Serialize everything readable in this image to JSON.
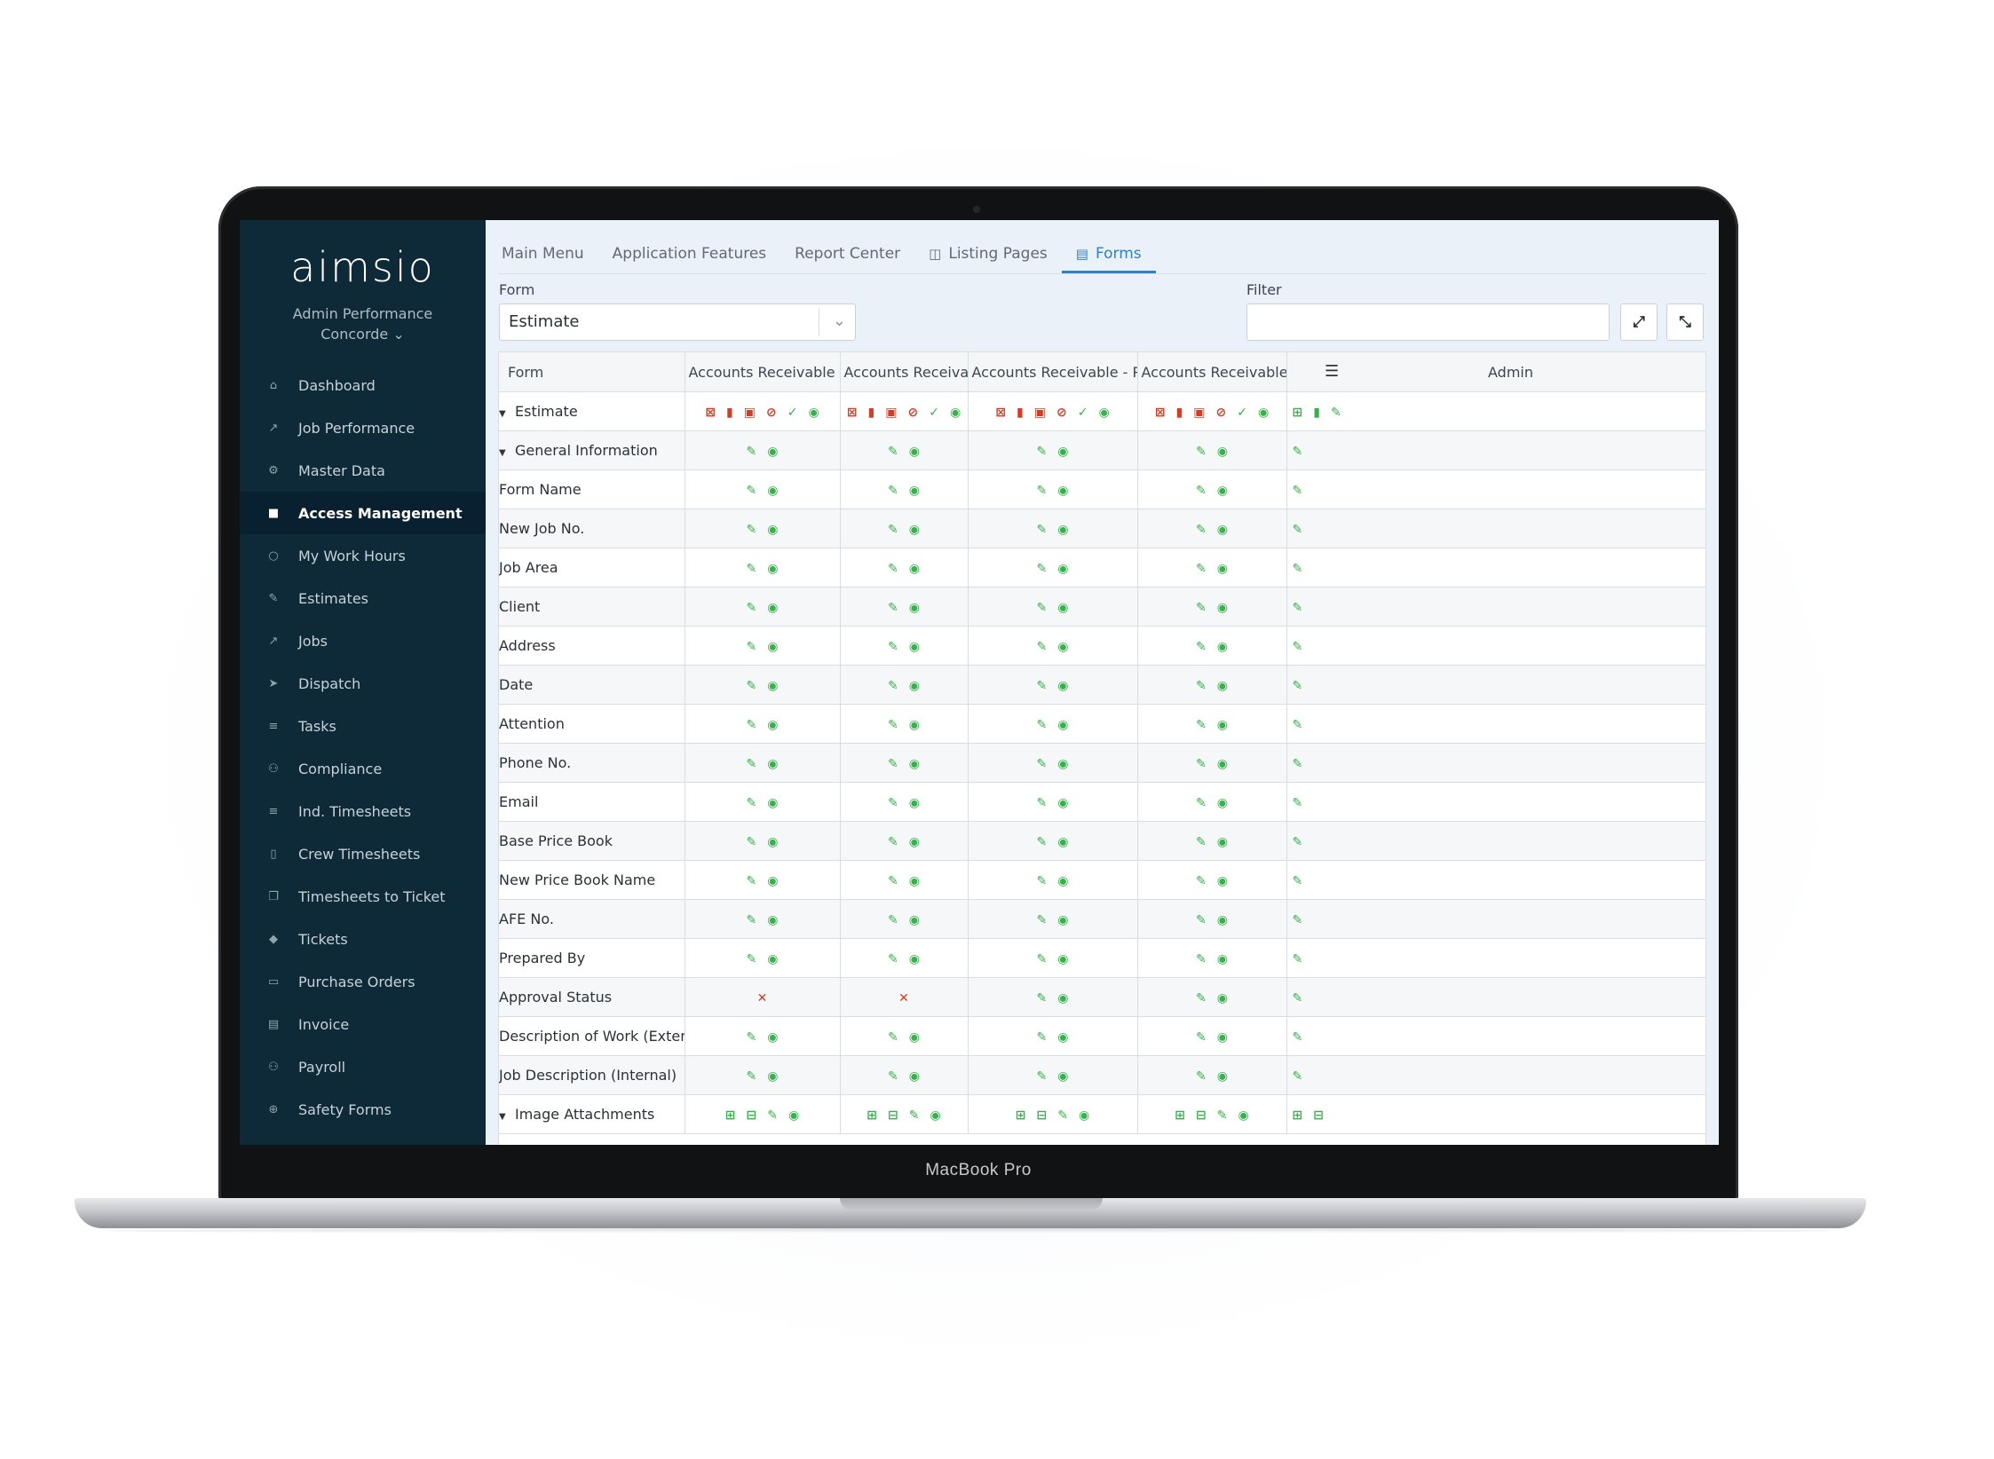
{
  "device": {
    "label": "MacBook Pro"
  },
  "sidebar": {
    "logo": "aimsio",
    "org_line1": "Admin Performance",
    "org_line2": "Concorde ⌄",
    "items": [
      {
        "label": "Dashboard",
        "icon": "home-icon"
      },
      {
        "label": "Job Performance",
        "icon": "chart-icon"
      },
      {
        "label": "Master Data",
        "icon": "gear-icon"
      },
      {
        "label": "Access Management",
        "icon": "lock-icon",
        "active": true
      },
      {
        "label": "My Work Hours",
        "icon": "clock-icon"
      },
      {
        "label": "Estimates",
        "icon": "edit-icon"
      },
      {
        "label": "Jobs",
        "icon": "external-link-icon"
      },
      {
        "label": "Dispatch",
        "icon": "send-icon"
      },
      {
        "label": "Tasks",
        "icon": "list-icon"
      },
      {
        "label": "Compliance",
        "icon": "users-icon"
      },
      {
        "label": "Ind. Timesheets",
        "icon": "list-icon"
      },
      {
        "label": "Crew Timesheets",
        "icon": "file-icon"
      },
      {
        "label": "Timesheets to Ticket",
        "icon": "copy-icon"
      },
      {
        "label": "Tickets",
        "icon": "tag-icon"
      },
      {
        "label": "Purchase Orders",
        "icon": "credit-card-icon"
      },
      {
        "label": "Invoice",
        "icon": "invoice-icon"
      },
      {
        "label": "Payroll",
        "icon": "users-icon"
      },
      {
        "label": "Safety Forms",
        "icon": "medkit-icon"
      }
    ]
  },
  "tabs": [
    {
      "label": "Main Menu"
    },
    {
      "label": "Application Features"
    },
    {
      "label": "Report Center"
    },
    {
      "label": "Listing Pages",
      "icon": "columns-icon"
    },
    {
      "label": "Forms",
      "icon": "form-icon",
      "active": true
    }
  ],
  "filters": {
    "form_label": "Form",
    "form_value": "Estimate",
    "filter_label": "Filter",
    "filter_value": "",
    "expand_icon": "expand-icon",
    "collapse_icon": "compress-icon"
  },
  "grid": {
    "columns": [
      "Form",
      "Accounts Receivable - Essentials",
      "Accounts Receivable - Lite",
      "Accounts Receivable - Performance",
      "Accounts Receivable - Ultimate",
      "Admin"
    ],
    "header_menu_icon": "hamburger-icon",
    "rows": [
      {
        "name": "Estimate",
        "level": 0,
        "expand": true,
        "perms": [
          "full",
          "full",
          "full",
          "full",
          "admin"
        ]
      },
      {
        "name": "General Information",
        "level": 1,
        "expand": true,
        "perms": [
          "ev",
          "ev",
          "ev",
          "ev",
          "e"
        ]
      },
      {
        "name": "Form Name",
        "level": 2,
        "perms": [
          "ev",
          "ev",
          "ev",
          "ev",
          "e"
        ]
      },
      {
        "name": "New Job No.",
        "level": 2,
        "perms": [
          "ev",
          "ev",
          "ev",
          "ev",
          "e"
        ]
      },
      {
        "name": "Job Area",
        "level": 2,
        "perms": [
          "ev",
          "ev",
          "ev",
          "ev",
          "e"
        ]
      },
      {
        "name": "Client",
        "level": 2,
        "perms": [
          "ev",
          "ev",
          "ev",
          "ev",
          "e"
        ]
      },
      {
        "name": "Address",
        "level": 2,
        "perms": [
          "ev",
          "ev",
          "ev",
          "ev",
          "e"
        ]
      },
      {
        "name": "Date",
        "level": 2,
        "perms": [
          "ev",
          "ev",
          "ev",
          "ev",
          "e"
        ]
      },
      {
        "name": "Attention",
        "level": 2,
        "perms": [
          "ev",
          "ev",
          "ev",
          "ev",
          "e"
        ]
      },
      {
        "name": "Phone No.",
        "level": 2,
        "perms": [
          "ev",
          "ev",
          "ev",
          "ev",
          "e"
        ]
      },
      {
        "name": "Email",
        "level": 2,
        "perms": [
          "ev",
          "ev",
          "ev",
          "ev",
          "e"
        ]
      },
      {
        "name": "Base Price Book",
        "level": 2,
        "perms": [
          "ev",
          "ev",
          "ev",
          "ev",
          "e"
        ]
      },
      {
        "name": "New Price Book Name",
        "level": 2,
        "perms": [
          "ev",
          "ev",
          "ev",
          "ev",
          "e"
        ]
      },
      {
        "name": "AFE No.",
        "level": 2,
        "perms": [
          "ev",
          "ev",
          "ev",
          "ev",
          "e"
        ]
      },
      {
        "name": "Prepared By",
        "level": 2,
        "perms": [
          "ev",
          "ev",
          "ev",
          "ev",
          "e"
        ]
      },
      {
        "name": "Approval Status",
        "level": 2,
        "perms": [
          "x",
          "x",
          "ev",
          "ev",
          "e"
        ]
      },
      {
        "name": "Description of Work (External)",
        "level": 2,
        "perms": [
          "ev",
          "ev",
          "ev",
          "ev",
          "e"
        ]
      },
      {
        "name": "Job Description (Internal)",
        "level": 2,
        "perms": [
          "ev",
          "ev",
          "ev",
          "ev",
          "e"
        ]
      },
      {
        "name": "Image Attachments",
        "level": 2,
        "expand": true,
        "perms": [
          "amev",
          "amev",
          "amev",
          "amev",
          "am"
        ]
      }
    ],
    "icon_sets": {
      "full": [
        [
          "calendar-x-icon",
          "r"
        ],
        [
          "trash-icon",
          "r"
        ],
        [
          "edit-square-icon",
          "r"
        ],
        [
          "ban-icon",
          "r"
        ],
        [
          "check-circle-icon",
          "g"
        ],
        [
          "eye-icon",
          "g"
        ]
      ],
      "admin": [
        [
          "calendar-plus-icon",
          "g"
        ],
        [
          "trash-icon",
          "g"
        ],
        [
          "edit-icon",
          "g"
        ]
      ],
      "ev": [
        [
          "edit-icon",
          "g"
        ],
        [
          "eye-icon",
          "g"
        ]
      ],
      "e": [
        [
          "edit-icon",
          "g"
        ]
      ],
      "x": [
        [
          "times-icon",
          "r"
        ]
      ],
      "amev": [
        [
          "plus-square-icon",
          "g"
        ],
        [
          "minus-square-icon",
          "g"
        ],
        [
          "edit-icon",
          "g"
        ],
        [
          "eye-icon",
          "g"
        ]
      ],
      "am": [
        [
          "plus-square-icon",
          "g"
        ],
        [
          "minus-square-icon",
          "g"
        ]
      ]
    },
    "colors": {
      "green": "#34b34a",
      "red": "#d93a20",
      "accent": "#2f80c8",
      "sidebar": "#0e2a38"
    }
  }
}
